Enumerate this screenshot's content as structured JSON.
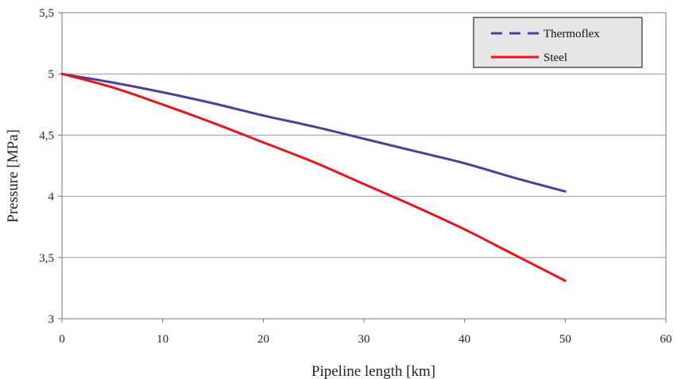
{
  "chart_data": {
    "type": "line",
    "xlabel": "Pipeline length [km]",
    "ylabel": "Pressure [MPa]",
    "xlim": [
      0,
      60
    ],
    "ylim": [
      3,
      5.5
    ],
    "xticks": [
      0,
      10,
      20,
      30,
      40,
      50,
      60
    ],
    "xtick_labels": [
      "0",
      "10",
      "20",
      "30",
      "40",
      "50",
      "60"
    ],
    "yticks": [
      3,
      3.5,
      4,
      4.5,
      5,
      5.5
    ],
    "ytick_labels": [
      "3",
      "3,5",
      "4",
      "4,5",
      "5",
      "5,5"
    ],
    "grid": "horizontal",
    "legend_position": "top-right",
    "series": [
      {
        "name": "Thermoflex",
        "color": "#4b3f9a",
        "line_style": "solid",
        "legend_line_style": "dashed",
        "x": [
          0,
          5,
          10,
          15,
          20,
          25,
          30,
          35,
          40,
          45,
          50
        ],
        "y": [
          5.0,
          4.93,
          4.85,
          4.76,
          4.66,
          4.57,
          4.47,
          4.37,
          4.27,
          4.15,
          4.04
        ]
      },
      {
        "name": "Steel",
        "color": "#e8141c",
        "line_style": "solid",
        "legend_line_style": "solid",
        "x": [
          0,
          5,
          10,
          15,
          20,
          25,
          30,
          35,
          40,
          45,
          50
        ],
        "y": [
          5.0,
          4.89,
          4.75,
          4.6,
          4.44,
          4.28,
          4.1,
          3.92,
          3.73,
          3.52,
          3.31
        ]
      }
    ]
  }
}
